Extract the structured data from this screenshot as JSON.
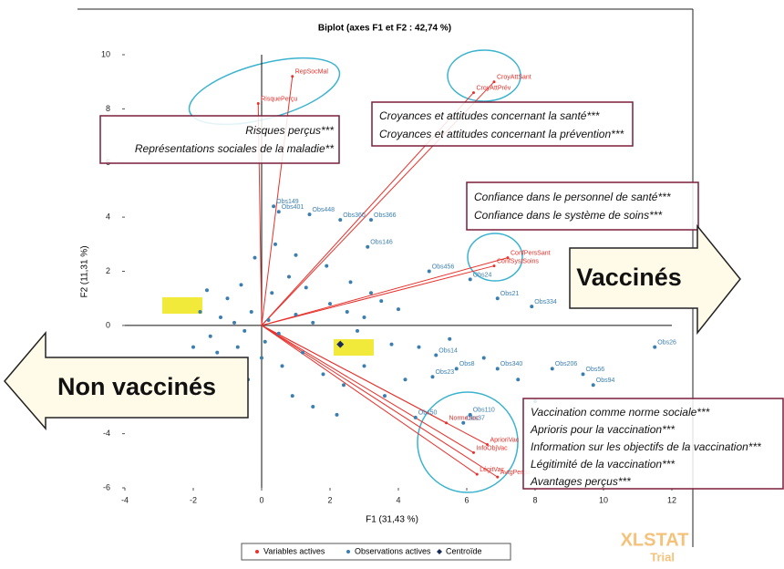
{
  "chart_data": {
    "type": "scatter",
    "title": "Biplot (axes F1 et F2 : 42,74 %)",
    "x_label": "F1 (31,43 %)",
    "y_label": "F2 (11,31 %)",
    "xlim": [
      -4,
      12
    ],
    "xticks": [
      -4,
      -2,
      0,
      2,
      4,
      6,
      8,
      10,
      12
    ],
    "ylim": [
      -6,
      10
    ],
    "yticks": [
      -6,
      -4,
      -2,
      0,
      2,
      4,
      6,
      8,
      10
    ],
    "grid": false,
    "legend": "bottom",
    "series": [
      {
        "name": "Variables actives",
        "color": "#e8312b",
        "vectors": true,
        "labels": [
          "RisquePerçu",
          "RepSocMal",
          "CroyAttPrév",
          "CroyAttSant",
          "ConfPersSant",
          "ConfSystSoins",
          "NormeSoc",
          "AprioriVac",
          "InfoObjVac",
          "LégitVac",
          "AvtgPerçu"
        ],
        "x": [
          -0.1,
          0.9,
          6.2,
          6.8,
          7.2,
          6.8,
          5.4,
          6.6,
          6.2,
          6.3,
          6.9
        ],
        "y": [
          8.2,
          9.2,
          8.6,
          9.0,
          2.5,
          2.2,
          -3.6,
          -4.4,
          -4.7,
          -5.5,
          -5.6
        ]
      },
      {
        "name": "Observations actives",
        "color": "#3b7fb0",
        "labels": [
          "Obs149",
          "Obs401",
          "Obs448",
          "Obs360",
          "Obs366",
          "Obs146",
          "Obs456",
          "Obs24",
          "Obs21",
          "Obs334",
          "Obs26",
          "Obs56",
          "Obs206",
          "Obs94",
          "Obs110",
          "Obs37",
          "Obs50",
          "Obs23",
          "Obs8",
          "Obs14",
          "Obs340",
          null,
          null,
          null,
          null,
          null,
          null,
          null,
          null,
          null,
          null,
          null,
          null,
          null,
          null,
          null,
          null,
          null,
          null,
          null,
          null,
          null,
          null,
          null,
          null,
          null,
          null,
          null,
          null,
          null,
          null,
          null,
          null,
          null,
          null,
          null,
          null,
          null,
          null,
          null,
          null,
          null,
          null,
          null,
          null,
          null,
          null,
          null,
          null,
          null,
          null
        ],
        "x": [
          0.35,
          0.5,
          1.4,
          2.3,
          3.2,
          3.1,
          4.9,
          6.1,
          6.9,
          7.9,
          11.5,
          9.4,
          8.5,
          9.7,
          6.1,
          5.9,
          4.5,
          5.0,
          5.7,
          5.1,
          6.9,
          -1.2,
          -0.8,
          -0.5,
          -1.5,
          -0.3,
          0.2,
          0.5,
          1.0,
          1.5,
          -1.0,
          -0.6,
          0.3,
          0.8,
          1.3,
          2.0,
          2.5,
          3.0,
          3.5,
          4.0,
          -1.8,
          -1.3,
          -0.7,
          0.0,
          0.6,
          1.2,
          1.8,
          2.4,
          3.0,
          3.6,
          4.2,
          -0.2,
          0.4,
          1.0,
          1.9,
          2.6,
          3.2,
          -0.4,
          0.9,
          1.5,
          2.2,
          4.6,
          5.5,
          6.5,
          7.5,
          8.0,
          -2.0,
          -1.6,
          0.1,
          2.8,
          3.8
        ],
        "y": [
          4.4,
          4.2,
          4.1,
          3.9,
          3.9,
          2.9,
          2.0,
          1.7,
          1.0,
          0.7,
          -0.8,
          -1.8,
          -1.6,
          -2.2,
          -3.3,
          -3.6,
          -3.4,
          -1.9,
          -1.6,
          -1.1,
          -1.6,
          0.3,
          0.1,
          -0.2,
          -0.4,
          0.5,
          0.2,
          -0.3,
          0.4,
          0.1,
          1.0,
          1.5,
          1.2,
          1.8,
          1.4,
          0.8,
          0.5,
          0.3,
          0.9,
          0.6,
          0.5,
          -1.0,
          -0.8,
          -1.2,
          -1.5,
          -1.0,
          -1.8,
          -2.2,
          -1.5,
          -2.6,
          -2.0,
          2.5,
          3.0,
          2.6,
          2.2,
          1.6,
          1.2,
          -2.0,
          -2.6,
          -3.0,
          -3.3,
          -0.8,
          -0.5,
          -1.2,
          -2.0,
          -2.8,
          -0.8,
          1.3,
          -0.6,
          -0.2,
          -0.7
        ]
      },
      {
        "name": "Centroïde",
        "color": "#1a2a5a",
        "marker": "diamond",
        "labels": [
          null
        ],
        "x": [
          2.3
        ],
        "y": [
          -0.7
        ]
      }
    ],
    "annotations": [
      [
        "Risques perçus***",
        "Représentations sociales de la maladie**"
      ],
      [
        "Croyances et attitudes concernant la santé***",
        "Croyances et attitudes concernant la prévention***"
      ],
      [
        "Confiance dans le personnel de santé***",
        "Confiance dans le système de soins***"
      ],
      [
        "Vaccination comme norme sociale***",
        "Aprioris pour la vaccination***",
        "Information sur les objectifs de la vaccination***",
        "Légitimité de la vaccination***",
        "Avantages perçus***"
      ]
    ],
    "arrows": [
      "Vaccinés",
      "Non vaccinés"
    ],
    "watermark": [
      "XLSTAT",
      "Trial"
    ]
  }
}
